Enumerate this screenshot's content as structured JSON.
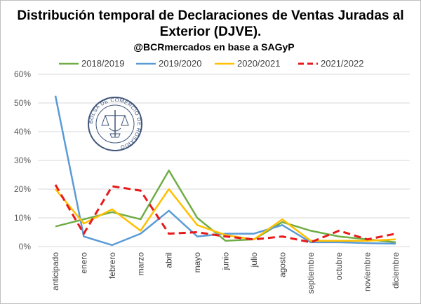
{
  "chart_data": {
    "type": "line",
    "title_line1": "Distribución temporal de Declaraciones de Ventas Juradas al",
    "title_line2": "Exterior (DJVE).",
    "subtitle": "@BCRmercados en base a SAGyP",
    "categories": [
      "anticipado",
      "enero",
      "febrero",
      "marzo",
      "abril",
      "mayo",
      "junio",
      "julio",
      "agosto",
      "septiembre",
      "octubre",
      "noviembre",
      "diciembre"
    ],
    "y_ticks": [
      "0%",
      "10%",
      "20%",
      "30%",
      "40%",
      "50%",
      "60%"
    ],
    "ylim": [
      0,
      60
    ],
    "grid": true,
    "legend_position": "top",
    "series": [
      {
        "name": "2018/2019",
        "color": "#70ad47",
        "dash": "solid",
        "values": [
          7,
          9.5,
          12,
          9.5,
          26.5,
          10,
          2,
          2.5,
          8.5,
          5.5,
          3.5,
          2.5,
          1.5
        ]
      },
      {
        "name": "2019/2020",
        "color": "#5b9bd5",
        "dash": "solid",
        "values": [
          52.5,
          3.5,
          0.5,
          4.5,
          12.5,
          3.5,
          4.5,
          4.5,
          7.5,
          1.5,
          1.5,
          1.2,
          1
        ]
      },
      {
        "name": "2020/2021",
        "color": "#ffc000",
        "dash": "solid",
        "values": [
          20,
          8,
          13,
          5.5,
          20,
          7.5,
          4,
          2.5,
          9.5,
          2,
          2,
          2,
          2.5
        ]
      },
      {
        "name": "2021/2022",
        "color": "#e8191b",
        "dash": "dashed",
        "values": [
          21.5,
          4.5,
          21,
          19.5,
          4.5,
          5,
          3.5,
          2.5,
          3.5,
          1.5,
          5.5,
          2.5,
          4.5
        ]
      }
    ],
    "seal_text": "BOLSA DE COMERCIO DE ROSARIO"
  }
}
